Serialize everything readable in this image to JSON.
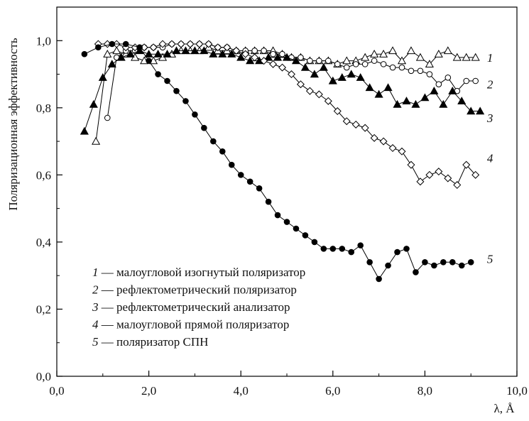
{
  "chart_data": {
    "type": "scatter",
    "title": "",
    "xlabel": "λ, Å",
    "ylabel": "Поляризационная эффективность",
    "xlim": [
      0,
      10
    ],
    "ylim": [
      0,
      1.1
    ],
    "x_ticks": [
      0,
      2,
      4,
      6,
      8,
      10
    ],
    "x_tick_labels": [
      "0,0",
      "2,0",
      "4,0",
      "6,0",
      "8,0",
      "10,0"
    ],
    "y_ticks": [
      0,
      0.2,
      0.4,
      0.6,
      0.8,
      1.0
    ],
    "y_tick_labels": [
      "0,0",
      "0,2",
      "0,4",
      "0,6",
      "0,8",
      "1,0"
    ],
    "grid": false,
    "legend_position": "bottom-left",
    "legend": [
      {
        "num": "1",
        "text": " — малоугловой изогнутый поляризатор"
      },
      {
        "num": "2",
        "text": " — рефлектометрический поляризатор"
      },
      {
        "num": "3",
        "text": " — рефлектометрический анализатор"
      },
      {
        "num": "4",
        "text": " — малоугловой прямой поляризатор"
      },
      {
        "num": "5",
        "text": " — поляризатор СПН"
      }
    ],
    "series": [
      {
        "name": "1",
        "marker": "open-triangle",
        "x": [
          0.85,
          1.1,
          1.3,
          1.5,
          1.7,
          1.9,
          2.1,
          2.3,
          2.5,
          2.7,
          2.9,
          3.1,
          3.3,
          3.5,
          3.7,
          3.9,
          4.1,
          4.3,
          4.5,
          4.7,
          4.9,
          5.1,
          5.3,
          5.5,
          5.7,
          5.9,
          6.1,
          6.3,
          6.5,
          6.7,
          6.9,
          7.1,
          7.3,
          7.5,
          7.7,
          7.9,
          8.1,
          8.3,
          8.5,
          8.7,
          8.9,
          9.1
        ],
        "y": [
          0.7,
          0.96,
          0.97,
          0.96,
          0.95,
          0.94,
          0.94,
          0.95,
          0.96,
          0.97,
          0.97,
          0.97,
          0.98,
          0.97,
          0.97,
          0.97,
          0.97,
          0.97,
          0.97,
          0.97,
          0.96,
          0.95,
          0.95,
          0.94,
          0.94,
          0.94,
          0.93,
          0.94,
          0.94,
          0.95,
          0.96,
          0.96,
          0.97,
          0.94,
          0.97,
          0.95,
          0.93,
          0.96,
          0.97,
          0.95,
          0.95,
          0.95
        ]
      },
      {
        "name": "2",
        "marker": "open-circle",
        "x": [
          1.1,
          1.3,
          1.5,
          1.7,
          1.9,
          2.1,
          2.3,
          2.5,
          2.7,
          2.9,
          3.1,
          3.3,
          3.5,
          3.7,
          3.9,
          4.1,
          4.3,
          4.5,
          4.7,
          4.9,
          5.1,
          5.3,
          5.5,
          5.7,
          5.9,
          6.1,
          6.3,
          6.5,
          6.7,
          6.9,
          7.1,
          7.3,
          7.5,
          7.7,
          7.9,
          8.1,
          8.3,
          8.5,
          8.7,
          8.9,
          9.1
        ],
        "y": [
          0.77,
          0.95,
          0.97,
          0.97,
          0.98,
          0.98,
          0.98,
          0.99,
          0.99,
          0.99,
          0.99,
          0.99,
          0.98,
          0.98,
          0.97,
          0.97,
          0.97,
          0.97,
          0.96,
          0.96,
          0.95,
          0.95,
          0.94,
          0.94,
          0.94,
          0.93,
          0.92,
          0.93,
          0.93,
          0.94,
          0.93,
          0.92,
          0.92,
          0.91,
          0.91,
          0.9,
          0.87,
          0.89,
          0.85,
          0.88,
          0.88
        ]
      },
      {
        "name": "3",
        "marker": "filled-triangle",
        "x": [
          0.6,
          0.8,
          1.0,
          1.2,
          1.4,
          1.6,
          1.8,
          2.0,
          2.2,
          2.4,
          2.6,
          2.8,
          3.0,
          3.2,
          3.4,
          3.6,
          3.8,
          4.0,
          4.2,
          4.4,
          4.6,
          4.8,
          5.0,
          5.2,
          5.4,
          5.6,
          5.8,
          6.0,
          6.2,
          6.4,
          6.6,
          6.8,
          7.0,
          7.2,
          7.4,
          7.6,
          7.8,
          8.0,
          8.2,
          8.4,
          8.6,
          8.8,
          9.0,
          9.2
        ],
        "y": [
          0.73,
          0.81,
          0.89,
          0.93,
          0.95,
          0.96,
          0.97,
          0.96,
          0.96,
          0.96,
          0.97,
          0.97,
          0.97,
          0.97,
          0.96,
          0.96,
          0.96,
          0.95,
          0.94,
          0.94,
          0.95,
          0.95,
          0.95,
          0.94,
          0.92,
          0.9,
          0.92,
          0.88,
          0.89,
          0.9,
          0.89,
          0.86,
          0.84,
          0.86,
          0.81,
          0.82,
          0.81,
          0.83,
          0.85,
          0.81,
          0.85,
          0.82,
          0.79,
          0.79
        ]
      },
      {
        "name": "4",
        "marker": "open-diamond",
        "x": [
          0.9,
          1.1,
          1.3,
          1.5,
          1.7,
          1.9,
          2.1,
          2.3,
          2.5,
          2.7,
          2.9,
          3.1,
          3.3,
          3.5,
          3.7,
          3.9,
          4.1,
          4.3,
          4.5,
          4.7,
          4.9,
          5.1,
          5.3,
          5.5,
          5.7,
          5.9,
          6.1,
          6.3,
          6.5,
          6.7,
          6.9,
          7.1,
          7.3,
          7.5,
          7.7,
          7.9,
          8.1,
          8.3,
          8.5,
          8.7,
          8.9,
          9.1
        ],
        "y": [
          0.99,
          0.99,
          0.99,
          0.98,
          0.98,
          0.98,
          0.98,
          0.99,
          0.99,
          0.99,
          0.99,
          0.99,
          0.99,
          0.98,
          0.98,
          0.97,
          0.96,
          0.95,
          0.94,
          0.93,
          0.92,
          0.9,
          0.87,
          0.85,
          0.84,
          0.82,
          0.79,
          0.76,
          0.75,
          0.74,
          0.71,
          0.7,
          0.68,
          0.67,
          0.63,
          0.58,
          0.6,
          0.61,
          0.59,
          0.57,
          0.63,
          0.6
        ]
      },
      {
        "name": "5",
        "marker": "filled-circle",
        "x": [
          0.6,
          0.9,
          1.2,
          1.5,
          1.8,
          2.0,
          2.2,
          2.4,
          2.6,
          2.8,
          3.0,
          3.2,
          3.4,
          3.6,
          3.8,
          4.0,
          4.2,
          4.4,
          4.6,
          4.8,
          5.0,
          5.2,
          5.4,
          5.6,
          5.8,
          6.0,
          6.2,
          6.4,
          6.6,
          6.8,
          7.0,
          7.2,
          7.4,
          7.6,
          7.8,
          8.0,
          8.2,
          8.4,
          8.6,
          8.8,
          9.0
        ],
        "y": [
          0.96,
          0.98,
          0.99,
          0.99,
          0.98,
          0.94,
          0.9,
          0.88,
          0.85,
          0.82,
          0.78,
          0.74,
          0.7,
          0.67,
          0.63,
          0.6,
          0.58,
          0.56,
          0.52,
          0.48,
          0.46,
          0.44,
          0.42,
          0.4,
          0.38,
          0.38,
          0.38,
          0.37,
          0.39,
          0.34,
          0.29,
          0.33,
          0.37,
          0.38,
          0.31,
          0.34,
          0.33,
          0.34,
          0.34,
          0.33,
          0.34
        ]
      }
    ]
  }
}
